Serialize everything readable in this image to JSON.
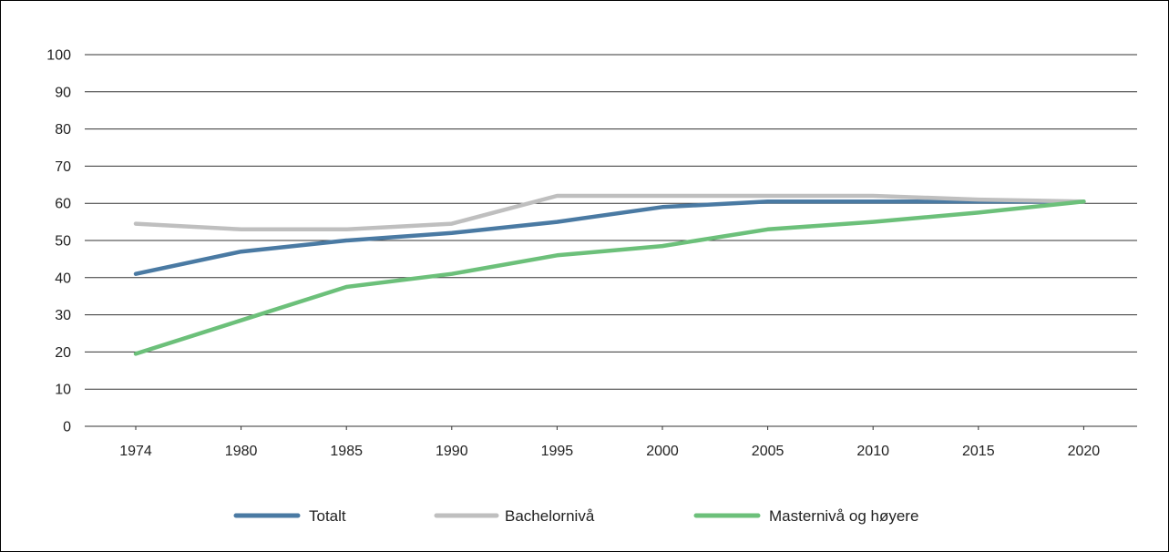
{
  "chart_data": {
    "type": "line",
    "title": "",
    "xlabel": "",
    "ylabel": "",
    "categories": [
      "1974",
      "1980",
      "1985",
      "1990",
      "1995",
      "2000",
      "2005",
      "2010",
      "2015",
      "2020"
    ],
    "ylim": [
      0,
      100
    ],
    "yticks": [
      0,
      10,
      20,
      30,
      40,
      50,
      60,
      70,
      80,
      90,
      100
    ],
    "grid": "horizontal",
    "legend_position": "bottom",
    "series": [
      {
        "name": "Totalt",
        "color": "#4a7aa3",
        "values": [
          41,
          47,
          50,
          52,
          55,
          59,
          60.5,
          60.5,
          60.5,
          60.5
        ]
      },
      {
        "name": "Bachelornivå",
        "color": "#bfbfbf",
        "values": [
          54.5,
          53,
          53,
          54.5,
          62,
          62,
          62,
          62,
          61,
          60.5
        ]
      },
      {
        "name": "Masternivå og høyere",
        "color": "#6cc07a",
        "values": [
          19.5,
          28.5,
          37.5,
          41,
          46,
          48.5,
          53,
          55,
          57.5,
          60.5
        ]
      }
    ]
  }
}
